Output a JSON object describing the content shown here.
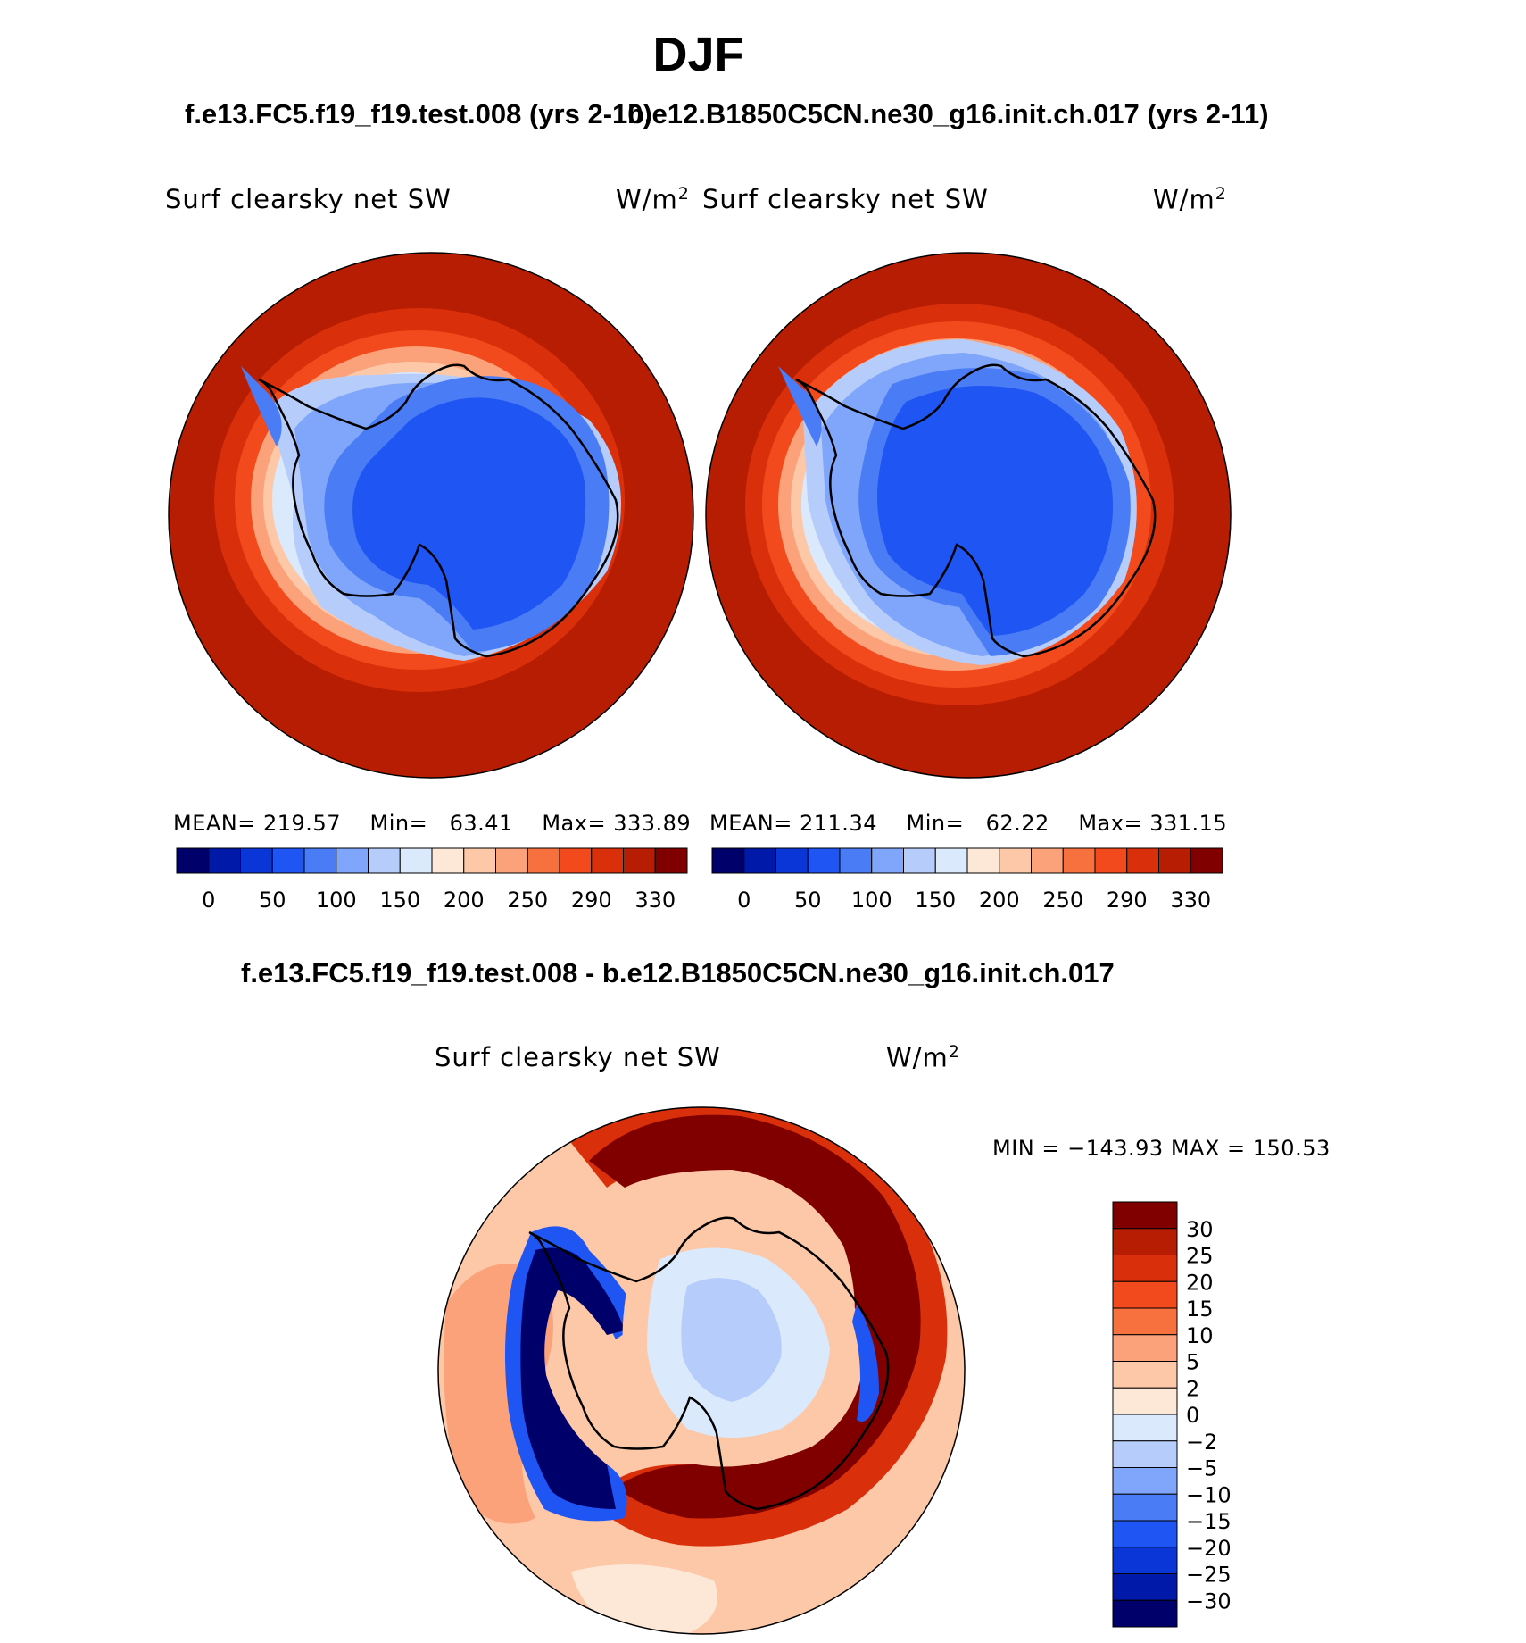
{
  "figure": {
    "season": "DJF",
    "top_left_case": "f.e13.FC5.f19_f19.test.008 (yrs 2-10)",
    "top_right_case": "b.e12.B1850C5CN.ne30_g16.init.ch.017 (yrs 2-11)",
    "diff_title": "f.e13.FC5.f19_f19.test.008 - b.e12.B1850C5CN.ne30_g16.init.ch.017"
  },
  "panels": {
    "left": {
      "variable": "Surf clearsky net SW",
      "units_base": "W/m",
      "units_exp": "2",
      "mean_label": "MEAN=",
      "mean": "219.57",
      "min_label": "Min=",
      "min": "63.41",
      "max_label": "Max=",
      "max": "333.89"
    },
    "right": {
      "variable": "Surf clearsky net SW",
      "units_base": "W/m",
      "units_exp": "2",
      "mean_label": "MEAN=",
      "mean": "211.34",
      "min_label": "Min=",
      "min": "62.22",
      "max_label": "Max=",
      "max": "331.15"
    },
    "diff": {
      "variable": "Surf clearsky net SW",
      "units_base": "W/m",
      "units_exp": "2",
      "minmax": "MIN = −143.93  MAX = 150.53"
    }
  },
  "colors": {
    "abs_palette": [
      "#00006b",
      "#0019a8",
      "#0a36d8",
      "#1f55f3",
      "#4a7cf5",
      "#7fa6fa",
      "#b6cdfb",
      "#dbe9fc",
      "#fde8d8",
      "#fcc8a8",
      "#fba27a",
      "#f7713f",
      "#f24a1c",
      "#d9300b",
      "#b71d03",
      "#800000"
    ],
    "diff_palette": [
      "#00006b",
      "#0019a8",
      "#0a36d8",
      "#1f55f3",
      "#4a7cf5",
      "#7fa6fa",
      "#b6cdfb",
      "#dbe9fc",
      "#fde8d8",
      "#fcc8a8",
      "#fba27a",
      "#f7713f",
      "#f24a1c",
      "#d9300b",
      "#b71d03",
      "#800000"
    ],
    "ocean": "#b71d03",
    "ice": "#1f55f3"
  },
  "chart_data": [
    {
      "type": "heatmap",
      "title": "f.e13.FC5.f19_f19.test.008 (yrs 2-10)",
      "variable": "Surf clearsky net SW",
      "units": "W/m2",
      "projection": "south polar stereographic",
      "colorbar_ticks": [
        "0",
        "50",
        "100",
        "150",
        "200",
        "250",
        "290",
        "330"
      ],
      "stats": {
        "mean": 219.57,
        "min": 63.41,
        "max": 333.89
      }
    },
    {
      "type": "heatmap",
      "title": "b.e12.B1850C5CN.ne30_g16.init.ch.017 (yrs 2-11)",
      "variable": "Surf clearsky net SW",
      "units": "W/m2",
      "projection": "south polar stereographic",
      "colorbar_ticks": [
        "0",
        "50",
        "100",
        "150",
        "200",
        "250",
        "290",
        "330"
      ],
      "stats": {
        "mean": 211.34,
        "min": 62.22,
        "max": 331.15
      }
    },
    {
      "type": "heatmap",
      "title": "f.e13.FC5.f19_f19.test.008 - b.e12.B1850C5CN.ne30_g16.init.ch.017",
      "variable": "Surf clearsky net SW",
      "units": "W/m2",
      "projection": "south polar stereographic",
      "colorbar_ticks": [
        "30",
        "25",
        "20",
        "15",
        "10",
        "5",
        "2",
        "0",
        "−2",
        "−5",
        "−10",
        "−15",
        "−20",
        "−25",
        "−30"
      ],
      "stats": {
        "min": -143.93,
        "max": 150.53
      }
    }
  ]
}
